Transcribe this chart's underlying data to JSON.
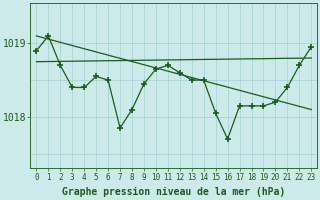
{
  "xlabel": "Graphe pression niveau de la mer (hPa)",
  "bg_color": "#cceaea",
  "grid_color": "#aad4d4",
  "line_color": "#1a5c1a",
  "marker_color": "#1a5c1a",
  "axis_color": "#2d6b2d",
  "text_color": "#1a5c1a",
  "yticks": [
    1018,
    1019
  ],
  "ylim": [
    1017.3,
    1019.55
  ],
  "xlim": [
    -0.5,
    23.5
  ],
  "hours": [
    0,
    1,
    2,
    3,
    4,
    5,
    6,
    7,
    8,
    9,
    10,
    11,
    12,
    13,
    14,
    15,
    16,
    17,
    18,
    19,
    20,
    21,
    22,
    23
  ],
  "pressure_main": [
    1018.9,
    1019.1,
    1018.7,
    1018.4,
    1018.4,
    1018.55,
    1018.5,
    1017.85,
    1018.1,
    1018.45,
    1018.65,
    1018.7,
    1018.6,
    1018.5,
    1018.5,
    1018.05,
    1017.7,
    1018.15,
    1018.15,
    1018.15,
    1018.2,
    1018.4,
    1018.7,
    1018.95
  ],
  "trend1_x": [
    0,
    23
  ],
  "trend1_y": [
    1019.1,
    1018.1
  ],
  "trend2_x": [
    0,
    23
  ],
  "trend2_y": [
    1018.75,
    1018.8
  ],
  "fontsize_xlabel": 7,
  "fontsize_yticks": 7,
  "fontsize_xticks": 5.5
}
